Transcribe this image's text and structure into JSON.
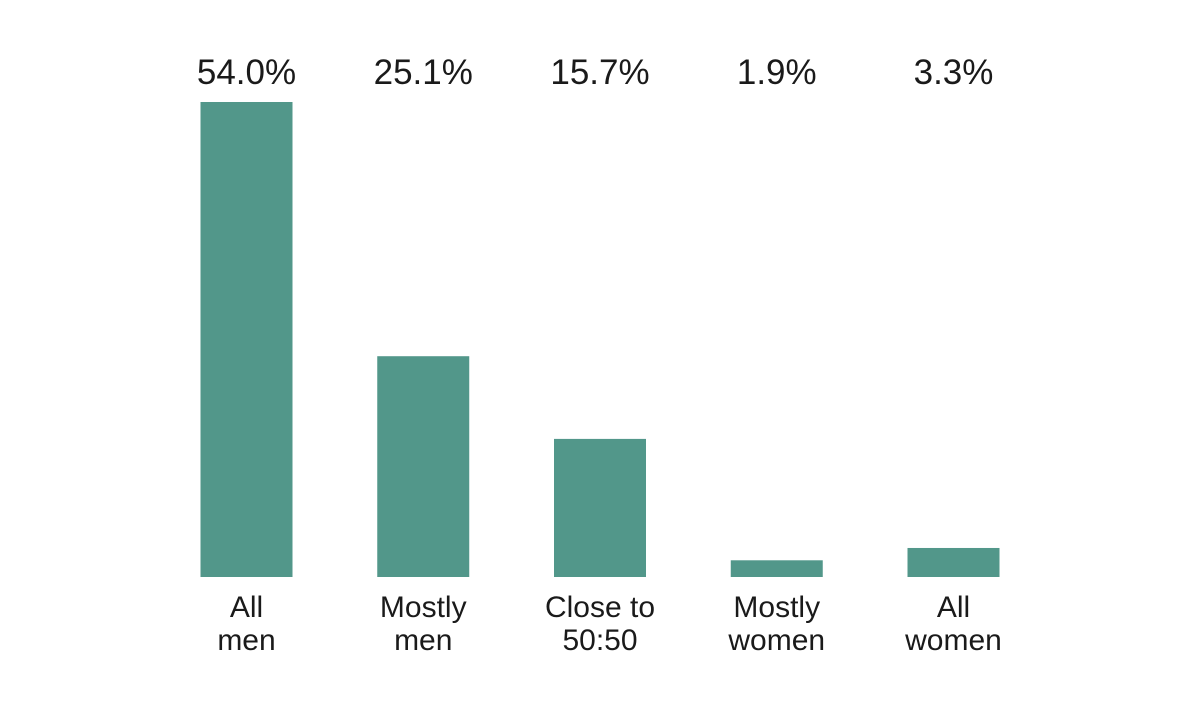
{
  "chart_data": {
    "type": "bar",
    "categories": [
      [
        "All",
        "men"
      ],
      [
        "Mostly",
        "men"
      ],
      [
        "Close to",
        "50:50"
      ],
      [
        "Mostly",
        "women"
      ],
      [
        "All",
        "women"
      ]
    ],
    "values": [
      54.0,
      25.1,
      15.7,
      1.9,
      3.3
    ],
    "value_labels": [
      "54.0%",
      "25.1%",
      "15.7%",
      "1.9%",
      "3.3%"
    ],
    "unit": "%",
    "ylim": [
      0,
      54.0
    ],
    "bar_color": "#52978a",
    "grid": false,
    "legend": "none",
    "title": "",
    "xlabel": "",
    "ylabel": ""
  }
}
